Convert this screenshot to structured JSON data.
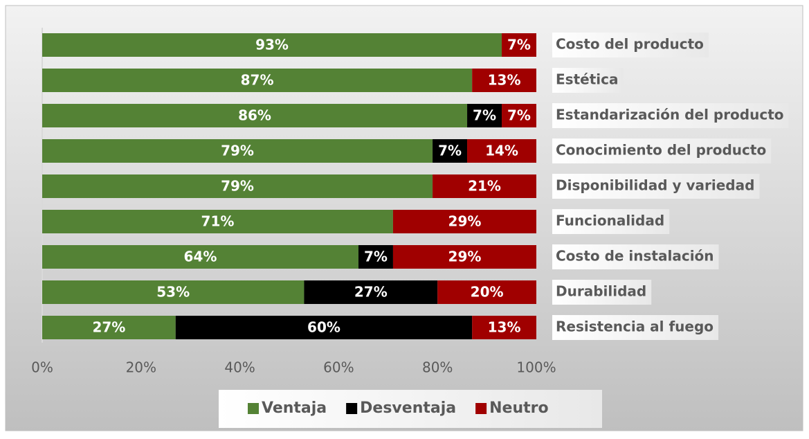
{
  "chart_data": {
    "type": "stacked-barh",
    "categories": [
      "Costo del producto",
      "Estética",
      "Estandarización del producto",
      "Conocimiento del producto",
      "Disponibilidad y variedad",
      "Funcionalidad",
      "Costo de instalación",
      "Durabilidad",
      "Resistencia al fuego"
    ],
    "series": [
      {
        "name": "Ventaja",
        "color": "#548235",
        "values": [
          93,
          87,
          86,
          79,
          79,
          71,
          64,
          53,
          27
        ],
        "value_labels": [
          "93%",
          "87%",
          "86%",
          "79%",
          "79%",
          "71%",
          "64%",
          "53%",
          "27%"
        ]
      },
      {
        "name": "Desventaja",
        "color": "#000000",
        "values": [
          null,
          null,
          7,
          7,
          null,
          null,
          7,
          27,
          60
        ],
        "value_labels": [
          null,
          null,
          "7%",
          "7%",
          null,
          null,
          "7%",
          "27%",
          "60%"
        ]
      },
      {
        "name": "Neutro",
        "color": "#a00000",
        "values": [
          7,
          13,
          7,
          14,
          21,
          29,
          29,
          20,
          13
        ],
        "value_labels": [
          "7%",
          "13%",
          "7%",
          "14%",
          "21%",
          "29%",
          "29%",
          "20%",
          "13%"
        ]
      }
    ],
    "xlim": [
      0,
      100
    ],
    "xticks": [
      {
        "value": 0,
        "label": "0%"
      },
      {
        "value": 20,
        "label": "20%"
      },
      {
        "value": 40,
        "label": "40%"
      },
      {
        "value": 60,
        "label": "60%"
      },
      {
        "value": 80,
        "label": "80%"
      },
      {
        "value": 100,
        "label": "100%"
      }
    ],
    "legend": "bottom"
  }
}
